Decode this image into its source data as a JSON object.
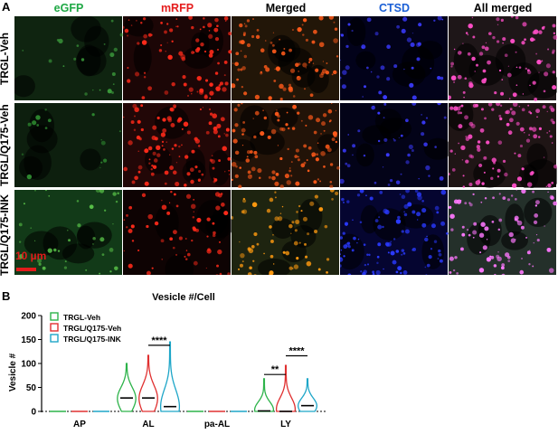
{
  "panel_a": {
    "letter": "A",
    "columns": [
      {
        "label": "eGFP",
        "color": "#1fa845"
      },
      {
        "label": "mRFP",
        "color": "#e51d1d"
      },
      {
        "label": "Merged",
        "color": "#000000"
      },
      {
        "label": "CTSD",
        "color": "#1a5fd6"
      },
      {
        "label": "All merged",
        "color": "#000000"
      }
    ],
    "rows": [
      "TRGL-Veh",
      "TRGL/Q175-Veh",
      "TRGL/Q175-INK"
    ],
    "scale_bar": "10 µm"
  },
  "panel_b": {
    "letter": "B",
    "chart_data": {
      "type": "violin",
      "title": "Vesicle #/Cell",
      "ylabel": "Vesicle #",
      "xlabel": "",
      "ylim": [
        0,
        200
      ],
      "yticks": [
        0,
        50,
        100,
        150,
        200
      ],
      "categories": [
        "AP",
        "AL",
        "pa-AL",
        "LY"
      ],
      "legend_position": "top-left",
      "series": [
        {
          "name": "TRGL-Veh",
          "color": "#2db34a",
          "max": [
            2,
            100,
            2,
            68
          ],
          "median": [
            0,
            28,
            0,
            1
          ]
        },
        {
          "name": "TRGL/Q175-Veh",
          "color": "#e03030",
          "max": [
            2,
            117,
            2,
            96
          ],
          "median": [
            0,
            28,
            0,
            0
          ]
        },
        {
          "name": "TRGL/Q175-INK",
          "color": "#1ea6c8",
          "max": [
            2,
            145,
            2,
            68
          ],
          "median": [
            0,
            10,
            0,
            12
          ]
        }
      ],
      "significance": [
        {
          "category": "AL",
          "between": [
            "TRGL/Q175-Veh",
            "TRGL/Q175-INK"
          ],
          "label": "****"
        },
        {
          "category": "LY",
          "between": [
            "TRGL-Veh",
            "TRGL/Q175-Veh"
          ],
          "label": "**"
        },
        {
          "category": "LY",
          "between": [
            "TRGL/Q175-Veh",
            "TRGL/Q175-INK"
          ],
          "label": "****"
        }
      ]
    }
  }
}
